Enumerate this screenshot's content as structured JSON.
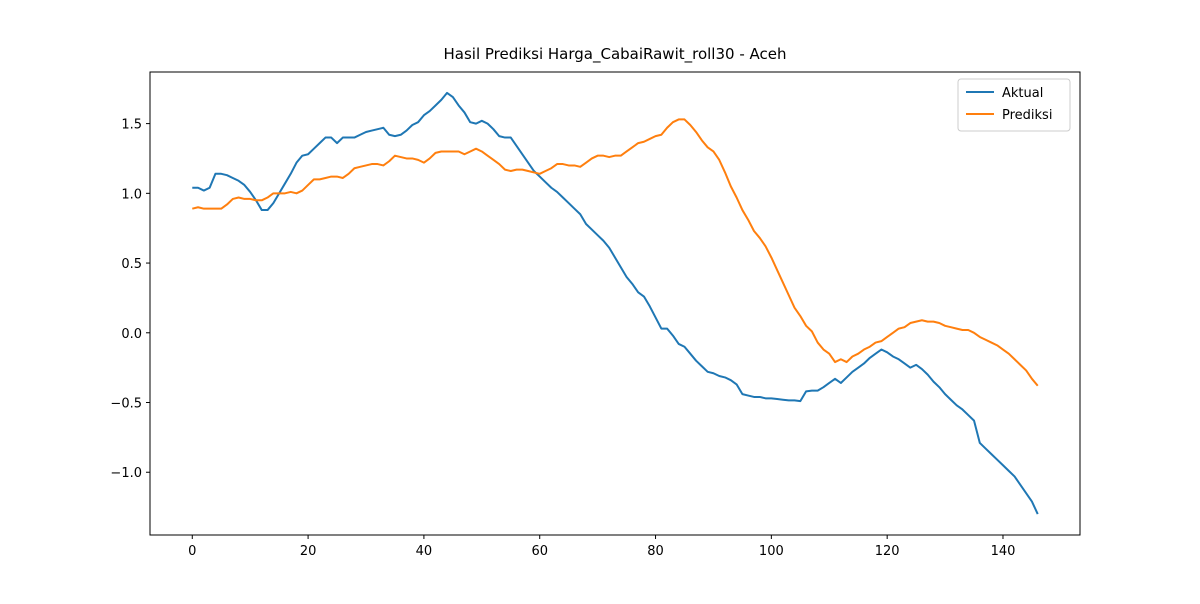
{
  "chart_data": {
    "type": "line",
    "title": "Hasil Prediksi Harga_CabaiRawit_roll30 - Aceh",
    "x": [
      0,
      1,
      2,
      3,
      4,
      5,
      6,
      7,
      8,
      9,
      10,
      11,
      12,
      13,
      14,
      15,
      16,
      17,
      18,
      19,
      20,
      21,
      22,
      23,
      24,
      25,
      26,
      27,
      28,
      29,
      30,
      31,
      32,
      33,
      34,
      35,
      36,
      37,
      38,
      39,
      40,
      41,
      42,
      43,
      44,
      45,
      46,
      47,
      48,
      49,
      50,
      51,
      52,
      53,
      54,
      55,
      56,
      57,
      58,
      59,
      60,
      61,
      62,
      63,
      64,
      65,
      66,
      67,
      68,
      69,
      70,
      71,
      72,
      73,
      74,
      75,
      76,
      77,
      78,
      79,
      80,
      81,
      82,
      83,
      84,
      85,
      86,
      87,
      88,
      89,
      90,
      91,
      92,
      93,
      94,
      95,
      96,
      97,
      98,
      99,
      100,
      101,
      102,
      103,
      104,
      105,
      106,
      107,
      108,
      109,
      110,
      111,
      112,
      113,
      114,
      115,
      116,
      117,
      118,
      119,
      120,
      121,
      122,
      123,
      124,
      125,
      126,
      127,
      128,
      129,
      130,
      131,
      132,
      133,
      134,
      135,
      136,
      137,
      138,
      139,
      140,
      141,
      142,
      143,
      144,
      145,
      146
    ],
    "series": [
      {
        "name": "Aktual",
        "color": "#1f77b4",
        "values": [
          1.04,
          1.04,
          1.02,
          1.04,
          1.14,
          1.14,
          1.13,
          1.11,
          1.09,
          1.06,
          1.01,
          0.95,
          0.88,
          0.88,
          0.93,
          1.0,
          1.07,
          1.14,
          1.22,
          1.27,
          1.28,
          1.32,
          1.36,
          1.4,
          1.4,
          1.36,
          1.4,
          1.4,
          1.4,
          1.42,
          1.44,
          1.45,
          1.46,
          1.47,
          1.42,
          1.41,
          1.42,
          1.45,
          1.49,
          1.51,
          1.56,
          1.59,
          1.63,
          1.67,
          1.72,
          1.69,
          1.63,
          1.58,
          1.51,
          1.5,
          1.52,
          1.5,
          1.46,
          1.41,
          1.4,
          1.4,
          1.34,
          1.28,
          1.22,
          1.16,
          1.12,
          1.08,
          1.04,
          1.01,
          0.97,
          0.93,
          0.89,
          0.85,
          0.78,
          0.74,
          0.7,
          0.66,
          0.61,
          0.54,
          0.47,
          0.4,
          0.35,
          0.29,
          0.26,
          0.19,
          0.11,
          0.03,
          0.03,
          -0.02,
          -0.08,
          -0.1,
          -0.15,
          -0.2,
          -0.24,
          -0.28,
          -0.29,
          -0.31,
          -0.32,
          -0.34,
          -0.37,
          -0.44,
          -0.45,
          -0.46,
          -0.46,
          -0.47,
          -0.47,
          -0.475,
          -0.48,
          -0.485,
          -0.485,
          -0.49,
          -0.42,
          -0.415,
          -0.415,
          -0.39,
          -0.36,
          -0.33,
          -0.36,
          -0.32,
          -0.28,
          -0.25,
          -0.22,
          -0.18,
          -0.15,
          -0.12,
          -0.14,
          -0.17,
          -0.19,
          -0.22,
          -0.25,
          -0.23,
          -0.26,
          -0.3,
          -0.35,
          -0.39,
          -0.44,
          -0.48,
          -0.52,
          -0.55,
          -0.59,
          -0.63,
          -0.79,
          -0.83,
          -0.87,
          -0.91,
          -0.95,
          -0.99,
          -1.03,
          -1.09,
          -1.15,
          -1.21,
          -1.3
        ]
      },
      {
        "name": "Prediksi",
        "color": "#ff7f0e",
        "values": [
          0.89,
          0.9,
          0.89,
          0.89,
          0.89,
          0.89,
          0.92,
          0.96,
          0.97,
          0.96,
          0.96,
          0.95,
          0.95,
          0.97,
          1.0,
          1.0,
          1.0,
          1.01,
          1.0,
          1.02,
          1.06,
          1.1,
          1.1,
          1.11,
          1.12,
          1.12,
          1.11,
          1.14,
          1.18,
          1.19,
          1.2,
          1.21,
          1.21,
          1.2,
          1.23,
          1.27,
          1.26,
          1.25,
          1.25,
          1.24,
          1.22,
          1.25,
          1.29,
          1.3,
          1.3,
          1.3,
          1.3,
          1.28,
          1.3,
          1.32,
          1.3,
          1.27,
          1.24,
          1.21,
          1.17,
          1.16,
          1.17,
          1.17,
          1.16,
          1.15,
          1.14,
          1.16,
          1.18,
          1.21,
          1.21,
          1.2,
          1.2,
          1.19,
          1.22,
          1.25,
          1.27,
          1.27,
          1.26,
          1.27,
          1.27,
          1.3,
          1.33,
          1.36,
          1.37,
          1.39,
          1.41,
          1.42,
          1.47,
          1.51,
          1.53,
          1.53,
          1.49,
          1.44,
          1.38,
          1.33,
          1.3,
          1.24,
          1.15,
          1.05,
          0.97,
          0.88,
          0.81,
          0.73,
          0.68,
          0.62,
          0.54,
          0.45,
          0.36,
          0.27,
          0.18,
          0.12,
          0.05,
          0.01,
          -0.07,
          -0.12,
          -0.15,
          -0.21,
          -0.19,
          -0.21,
          -0.17,
          -0.15,
          -0.12,
          -0.1,
          -0.07,
          -0.06,
          -0.03,
          0.0,
          0.03,
          0.04,
          0.07,
          0.08,
          0.09,
          0.08,
          0.08,
          0.07,
          0.05,
          0.04,
          0.03,
          0.02,
          0.02,
          0.0,
          -0.03,
          -0.05,
          -0.07,
          -0.09,
          -0.12,
          -0.15,
          -0.19,
          -0.23,
          -0.27,
          -0.33,
          -0.38
        ]
      }
    ],
    "xlim": [
      -7.3,
      153.3
    ],
    "xticks": [
      0,
      20,
      40,
      60,
      80,
      100,
      120,
      140
    ],
    "ylim": [
      -1.45,
      1.87
    ],
    "yticks": [
      {
        "value": -1.0,
        "label": "−1.0"
      },
      {
        "value": -0.5,
        "label": "−0.5"
      },
      {
        "value": 0,
        "label": "0.0"
      },
      {
        "value": 0.5,
        "label": "0.5"
      },
      {
        "value": 1.0,
        "label": "1.0"
      },
      {
        "value": 1.5,
        "label": "1.5"
      }
    ],
    "legend": "upper right",
    "grid": false
  }
}
